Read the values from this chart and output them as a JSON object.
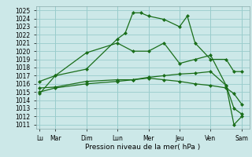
{
  "xlabel": "Pression niveau de la mer( hPa )",
  "ylim": [
    1010.5,
    1025.5
  ],
  "yticks": [
    1011,
    1012,
    1013,
    1014,
    1015,
    1016,
    1017,
    1018,
    1019,
    1020,
    1021,
    1022,
    1023,
    1024,
    1025
  ],
  "background_color": "#cce8e8",
  "grid_color": "#99cccc",
  "line_color": "#1a6e1a",
  "series1_x": [
    0,
    1,
    3,
    5,
    5.5,
    6,
    6.5,
    7,
    8,
    9,
    9.5,
    10,
    11,
    12,
    12.5,
    13
  ],
  "series1_y": [
    1016.3,
    1017.0,
    1017.8,
    1021.5,
    1022.2,
    1024.7,
    1024.7,
    1024.3,
    1023.9,
    1023.0,
    1024.3,
    1021.0,
    1019.0,
    1019.0,
    1017.5,
    1017.5
  ],
  "series2_x": [
    0,
    1,
    3,
    5,
    6,
    7,
    8,
    9,
    10,
    11,
    12,
    12.5,
    13
  ],
  "series2_y": [
    1015.5,
    1015.6,
    1016.3,
    1016.5,
    1016.5,
    1016.7,
    1016.5,
    1016.3,
    1016.0,
    1015.8,
    1015.5,
    1014.8,
    1013.5
  ],
  "series3_x": [
    0,
    1,
    3,
    5,
    6,
    7,
    8,
    9,
    10,
    11,
    12,
    12.5,
    13
  ],
  "series3_y": [
    1015.0,
    1015.5,
    1016.0,
    1016.3,
    1016.5,
    1016.8,
    1017.0,
    1017.2,
    1017.3,
    1017.5,
    1015.8,
    1013.0,
    1012.3
  ],
  "series4_x": [
    0,
    1,
    3,
    5,
    6,
    7,
    8,
    9,
    10,
    11,
    12,
    12.5,
    13
  ],
  "series4_y": [
    1014.8,
    1017.0,
    1019.8,
    1021.0,
    1020.0,
    1020.0,
    1021.0,
    1018.5,
    1019.0,
    1019.5,
    1015.8,
    1011.0,
    1012.0
  ],
  "xtick_positions": [
    0,
    1,
    3,
    5,
    7,
    9,
    11,
    13
  ],
  "xtick_day_labels": [
    "Lu",
    "Mar",
    "Dim",
    "Lun",
    "Mer",
    "Jeu",
    "Ven",
    "Sam"
  ],
  "xlim": [
    -0.2,
    13.5
  ]
}
